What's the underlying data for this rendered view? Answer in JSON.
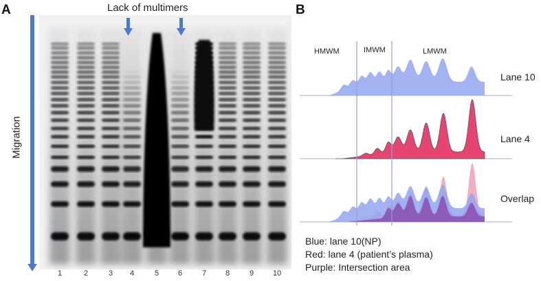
{
  "panel_a": {
    "letter": "A",
    "title": "Lack of multimers",
    "axis_label": "Migration",
    "lanes": [
      "1",
      "2",
      "3",
      "4",
      "5",
      "6",
      "7",
      "8",
      "9",
      "10"
    ],
    "arrow_lanes": [
      "4",
      "6"
    ]
  },
  "panel_b": {
    "letter": "B",
    "region_labels": [
      "HMWM",
      "IMWM",
      "LMWM"
    ],
    "traces": [
      {
        "label": "Lane 10",
        "color": "#93a6f0"
      },
      {
        "label": "Lane 4",
        "color": "#e53b6a"
      },
      {
        "label": "Overlap",
        "color": "#8a4eb0"
      }
    ],
    "legend": [
      "Blue: lane 10(NP)",
      "Red: lane 4 (patient’s plasma)",
      "Purple: Intersection area"
    ]
  },
  "colors": {
    "arrow": "#4e7bc9",
    "blue": "#93a6f0",
    "red": "#e53b6a",
    "pink": "#f2a4bb",
    "purple": "#8a4eb0"
  }
}
